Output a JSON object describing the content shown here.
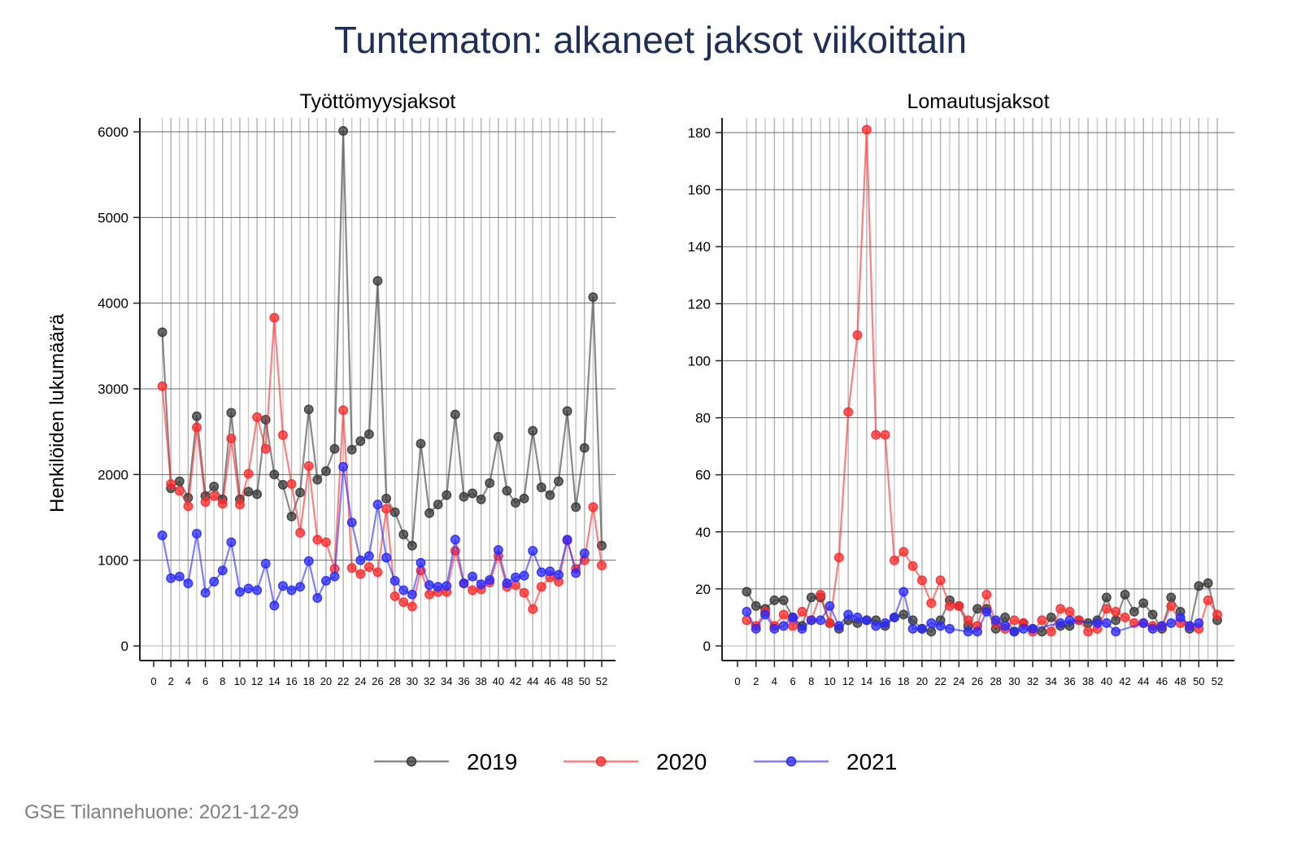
{
  "title": "Tuntematon: alkaneet jaksot viikoittain",
  "ylabel": "Henkilöiden lukumäärä",
  "footer": "GSE Tilannehuone: 2021-12-29",
  "colors": {
    "2019": "#3a3a3a",
    "2020": "#ff2a2a",
    "2021": "#2a2aff",
    "title": "#1f2f57"
  },
  "legend": [
    {
      "label": "2019",
      "color": "#3a3a3a"
    },
    {
      "label": "2020",
      "color": "#ff2a2a"
    },
    {
      "label": "2021",
      "color": "#2a2aff"
    }
  ],
  "chart_data": [
    {
      "type": "line",
      "title": "Työttömyysjaksot",
      "xlabel": "",
      "ylabel": "Henkilöiden lukumäärä",
      "xlim": [
        0,
        52
      ],
      "ylim": [
        0,
        6000
      ],
      "xticks": [
        "0",
        "2",
        "4",
        "6",
        "8",
        "10",
        "12",
        "14",
        "16",
        "18",
        "20",
        "22",
        "24",
        "26",
        "28",
        "30",
        "32",
        "34",
        "36",
        "38",
        "40",
        "42",
        "44",
        "46",
        "48",
        "50",
        "52"
      ],
      "yticks": [
        "0",
        "1000",
        "2000",
        "3000",
        "4000",
        "5000",
        "6000"
      ],
      "grid": true,
      "legend_position": "bottom",
      "series": [
        {
          "name": "2019",
          "x": [
            1,
            2,
            3,
            4,
            5,
            6,
            7,
            8,
            9,
            10,
            11,
            12,
            13,
            14,
            15,
            16,
            17,
            18,
            19,
            20,
            21,
            22,
            23,
            24,
            25,
            26,
            27,
            28,
            29,
            30,
            31,
            32,
            33,
            34,
            35,
            36,
            37,
            38,
            39,
            40,
            41,
            42,
            43,
            44,
            45,
            46,
            47,
            48,
            49,
            50,
            51,
            52
          ],
          "values": [
            3660,
            1840,
            1920,
            1730,
            2680,
            1750,
            1860,
            1710,
            2720,
            1710,
            1800,
            1770,
            2640,
            2000,
            1880,
            1510,
            1790,
            2760,
            1940,
            2040,
            2300,
            6010,
            2290,
            2390,
            2470,
            4260,
            1720,
            1560,
            1300,
            1170,
            2360,
            1550,
            1650,
            1760,
            2700,
            1740,
            1780,
            1710,
            1900,
            2440,
            1810,
            1670,
            1720,
            2510,
            1850,
            1760,
            1920,
            2740,
            1620,
            2310,
            4070,
            1170
          ]
        },
        {
          "name": "2020",
          "x": [
            1,
            2,
            3,
            4,
            5,
            6,
            7,
            8,
            9,
            10,
            11,
            12,
            13,
            14,
            15,
            16,
            17,
            18,
            19,
            20,
            21,
            22,
            23,
            24,
            25,
            26,
            27,
            28,
            29,
            30,
            31,
            32,
            33,
            34,
            35,
            36,
            37,
            38,
            39,
            40,
            41,
            42,
            43,
            44,
            45,
            46,
            47,
            48,
            49,
            50,
            51,
            52
          ],
          "values": [
            3030,
            1890,
            1810,
            1630,
            2550,
            1680,
            1750,
            1660,
            2420,
            1650,
            2010,
            2670,
            2300,
            3830,
            2460,
            1890,
            1320,
            2100,
            1240,
            1210,
            900,
            2750,
            910,
            840,
            920,
            860,
            1600,
            580,
            510,
            460,
            880,
            600,
            630,
            630,
            1110,
            730,
            650,
            660,
            740,
            1050,
            690,
            710,
            620,
            430,
            690,
            800,
            750,
            1230,
            900,
            1000,
            1620,
            940
          ]
        },
        {
          "name": "2021",
          "x": [
            1,
            2,
            3,
            4,
            5,
            6,
            7,
            8,
            9,
            10,
            11,
            12,
            13,
            14,
            15,
            16,
            17,
            18,
            19,
            20,
            21,
            22,
            23,
            24,
            25,
            26,
            27,
            28,
            29,
            30,
            31,
            32,
            33,
            34,
            35,
            36,
            37,
            38,
            39,
            40,
            41,
            42,
            43,
            44,
            45,
            46,
            47,
            48,
            49,
            50,
            51
          ],
          "values": [
            1290,
            790,
            810,
            730,
            1310,
            620,
            750,
            880,
            1210,
            630,
            670,
            650,
            960,
            470,
            700,
            650,
            690,
            990,
            560,
            760,
            810,
            2090,
            1440,
            1000,
            1050,
            1650,
            1030,
            760,
            650,
            600,
            970,
            710,
            690,
            700,
            1240,
            730,
            810,
            720,
            770,
            1120,
            730,
            800,
            820,
            1110,
            860,
            870,
            830,
            1240,
            850,
            1080,
            null
          ]
        }
      ]
    },
    {
      "type": "line",
      "title": "Lomautusjaksot",
      "xlabel": "",
      "ylabel": "",
      "xlim": [
        0,
        52
      ],
      "ylim": [
        0,
        180
      ],
      "xticks": [
        "0",
        "2",
        "4",
        "6",
        "8",
        "10",
        "12",
        "14",
        "16",
        "18",
        "20",
        "22",
        "24",
        "26",
        "28",
        "30",
        "32",
        "34",
        "36",
        "38",
        "40",
        "42",
        "44",
        "46",
        "48",
        "50",
        "52"
      ],
      "yticks": [
        "0",
        "20",
        "40",
        "60",
        "80",
        "100",
        "120",
        "140",
        "160",
        "180"
      ],
      "grid": true,
      "legend_position": "bottom",
      "series": [
        {
          "name": "2019",
          "x": [
            1,
            2,
            3,
            4,
            5,
            6,
            7,
            8,
            9,
            10,
            11,
            12,
            13,
            14,
            15,
            16,
            17,
            18,
            19,
            20,
            21,
            22,
            23,
            24,
            25,
            26,
            27,
            28,
            29,
            30,
            31,
            32,
            33,
            34,
            35,
            36,
            37,
            38,
            39,
            40,
            41,
            42,
            43,
            44,
            45,
            46,
            47,
            48,
            49,
            50,
            51,
            52
          ],
          "values": [
            19,
            14,
            13,
            16,
            16,
            10,
            7,
            17,
            17,
            8,
            6,
            9,
            8,
            9,
            9,
            7,
            10,
            11,
            9,
            6,
            5,
            9,
            16,
            14,
            7,
            13,
            13,
            6,
            10,
            5,
            8,
            6,
            5,
            10,
            7,
            7,
            9,
            8,
            9,
            17,
            9,
            18,
            12,
            15,
            11,
            6,
            17,
            12,
            6,
            21,
            22,
            9
          ]
        },
        {
          "name": "2020",
          "x": [
            1,
            2,
            3,
            4,
            5,
            6,
            7,
            8,
            9,
            10,
            11,
            12,
            13,
            14,
            15,
            16,
            17,
            18,
            19,
            20,
            21,
            22,
            23,
            24,
            25,
            26,
            27,
            28,
            29,
            30,
            31,
            32,
            33,
            34,
            35,
            36,
            37,
            38,
            39,
            40,
            41,
            42,
            43,
            44,
            45,
            46,
            47,
            48,
            49,
            50,
            51,
            52
          ],
          "values": [
            9,
            7,
            12,
            7,
            11,
            7,
            12,
            9,
            18,
            8,
            31,
            82,
            109,
            181,
            74,
            74,
            30,
            33,
            28,
            23,
            15,
            23,
            14,
            14,
            9,
            7,
            18,
            8,
            6,
            9,
            8,
            5,
            9,
            5,
            13,
            12,
            9,
            5,
            6,
            13,
            12,
            10,
            8,
            8,
            7,
            7,
            14,
            8,
            7,
            6,
            16,
            11
          ]
        },
        {
          "name": "2021",
          "x": [
            1,
            2,
            3,
            4,
            5,
            6,
            7,
            8,
            9,
            10,
            11,
            12,
            13,
            14,
            15,
            16,
            17,
            18,
            19,
            20,
            21,
            22,
            23,
            24,
            25,
            26,
            27,
            28,
            29,
            30,
            31,
            32,
            33,
            34,
            35,
            36,
            37,
            38,
            39,
            40,
            41,
            42,
            43,
            44,
            45,
            46,
            47,
            48,
            49,
            50,
            51
          ],
          "values": [
            12,
            6,
            11,
            6,
            7,
            10,
            6,
            9,
            9,
            14,
            7,
            11,
            10,
            9,
            7,
            8,
            10,
            19,
            6,
            6,
            8,
            7,
            6,
            null,
            5,
            5,
            12,
            9,
            7,
            5,
            6,
            6,
            null,
            null,
            8,
            9,
            null,
            null,
            8,
            8,
            5,
            null,
            null,
            8,
            6,
            7,
            8,
            10,
            7,
            8,
            null
          ]
        }
      ]
    }
  ]
}
